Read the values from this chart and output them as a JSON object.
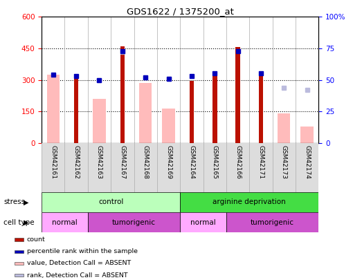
{
  "title": "GDS1622 / 1375200_at",
  "samples": [
    "GSM42161",
    "GSM42162",
    "GSM42163",
    "GSM42167",
    "GSM42168",
    "GSM42169",
    "GSM42164",
    "GSM42165",
    "GSM42166",
    "GSM42171",
    "GSM42173",
    "GSM42174"
  ],
  "count_values": [
    null,
    315,
    null,
    460,
    null,
    null,
    297,
    325,
    455,
    328,
    null,
    null
  ],
  "percentile_rank": [
    54,
    53,
    50,
    73,
    52,
    51,
    53,
    55,
    73,
    55,
    null,
    null
  ],
  "value_absent": [
    325,
    null,
    210,
    null,
    285,
    165,
    null,
    null,
    null,
    null,
    140,
    80
  ],
  "rank_absent": [
    null,
    null,
    50,
    72,
    52,
    51,
    null,
    null,
    null,
    null,
    44,
    42
  ],
  "ylim_left": [
    0,
    600
  ],
  "ylim_right": [
    0,
    100
  ],
  "yticks_left": [
    0,
    150,
    300,
    450,
    600
  ],
  "ytick_labels_left": [
    "0",
    "150",
    "300",
    "450",
    "600"
  ],
  "ytick_labels_right": [
    "0",
    "25",
    "50",
    "75",
    "100%"
  ],
  "stress_groups": [
    {
      "label": "control",
      "start": 0,
      "end": 6,
      "color": "#bbffbb"
    },
    {
      "label": "arginine deprivation",
      "start": 6,
      "end": 12,
      "color": "#44dd44"
    }
  ],
  "cell_type_groups": [
    {
      "label": "normal",
      "start": 0,
      "end": 2,
      "color": "#ffaaff"
    },
    {
      "label": "tumorigenic",
      "start": 2,
      "end": 6,
      "color": "#cc55cc"
    },
    {
      "label": "normal",
      "start": 6,
      "end": 8,
      "color": "#ffaaff"
    },
    {
      "label": "tumorigenic",
      "start": 8,
      "end": 12,
      "color": "#cc55cc"
    }
  ],
  "count_color": "#bb1100",
  "percentile_color": "#0000bb",
  "value_absent_color": "#ffbbbb",
  "rank_absent_color": "#bbbbdd",
  "plot_bg": "#ffffff",
  "legend_items": [
    {
      "label": "count",
      "color": "#bb1100"
    },
    {
      "label": "percentile rank within the sample",
      "color": "#0000bb"
    },
    {
      "label": "value, Detection Call = ABSENT",
      "color": "#ffbbbb"
    },
    {
      "label": "rank, Detection Call = ABSENT",
      "color": "#bbbbdd"
    }
  ]
}
